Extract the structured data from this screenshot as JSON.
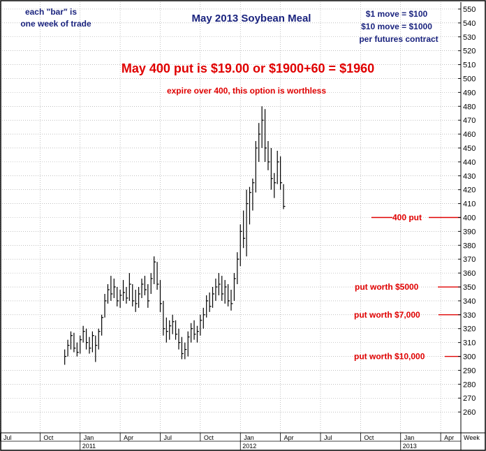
{
  "chart_data": {
    "type": "ohlc",
    "title": "May 2013 Soybean Meal",
    "notes": {
      "bar_note_line1": "each \"bar\" is",
      "bar_note_line2": "one week of trade",
      "move_line1": "$1 move = $100",
      "move_line2": "$10 move = $1000",
      "move_line3": "per futures contract",
      "headline": "May 400 put is $19.00 or $1900+60 = $1960",
      "subline": "expire over 400, this option is worthless"
    },
    "levels": [
      {
        "label": "400 put",
        "value": 400
      },
      {
        "label": "put worth $5000",
        "value": 350
      },
      {
        "label": "put worth $7,000",
        "value": 330
      },
      {
        "label": "put worth $10,000",
        "value": 300
      }
    ],
    "y_axis": {
      "min": 245,
      "max": 555,
      "ticks": [
        550,
        540,
        530,
        520,
        510,
        500,
        490,
        480,
        470,
        460,
        450,
        440,
        430,
        420,
        410,
        400,
        390,
        380,
        370,
        360,
        350,
        340,
        330,
        320,
        310,
        300,
        290,
        280,
        270,
        260
      ]
    },
    "x_axis": {
      "unit_label": "Week",
      "months": [
        {
          "label": "Jul",
          "week": 0
        },
        {
          "label": "Oct",
          "week": 13
        },
        {
          "label": "Jan",
          "week": 26
        },
        {
          "label": "Apr",
          "week": 39
        },
        {
          "label": "Jul",
          "week": 52
        },
        {
          "label": "Oct",
          "week": 65
        },
        {
          "label": "Jan",
          "week": 78
        },
        {
          "label": "Apr",
          "week": 91
        },
        {
          "label": "Jul",
          "week": 104
        },
        {
          "label": "Oct",
          "week": 117
        },
        {
          "label": "Jan",
          "week": 130
        },
        {
          "label": "Apr",
          "week": 143
        }
      ],
      "years": [
        {
          "label": "2011",
          "week": 26
        },
        {
          "label": "2012",
          "week": 78
        },
        {
          "label": "2013",
          "week": 130
        }
      ]
    },
    "bars": [
      {
        "week": 21,
        "high": 305,
        "low": 294,
        "close": 300
      },
      {
        "week": 22,
        "high": 312,
        "low": 300,
        "close": 308
      },
      {
        "week": 23,
        "high": 318,
        "low": 305,
        "close": 315
      },
      {
        "week": 24,
        "high": 317,
        "low": 303,
        "close": 306
      },
      {
        "week": 25,
        "high": 310,
        "low": 300,
        "close": 303
      },
      {
        "week": 26,
        "high": 315,
        "low": 302,
        "close": 312
      },
      {
        "week": 27,
        "high": 322,
        "low": 310,
        "close": 318
      },
      {
        "week": 28,
        "high": 320,
        "low": 305,
        "close": 310
      },
      {
        "week": 29,
        "high": 314,
        "low": 302,
        "close": 306
      },
      {
        "week": 30,
        "high": 318,
        "low": 303,
        "close": 315
      },
      {
        "week": 31,
        "high": 315,
        "low": 296,
        "close": 308
      },
      {
        "week": 32,
        "high": 320,
        "low": 305,
        "close": 318
      },
      {
        "week": 33,
        "high": 330,
        "low": 315,
        "close": 328
      },
      {
        "week": 34,
        "high": 345,
        "low": 328,
        "close": 340
      },
      {
        "week": 35,
        "high": 352,
        "low": 338,
        "close": 348
      },
      {
        "week": 36,
        "high": 358,
        "low": 340,
        "close": 345
      },
      {
        "week": 37,
        "high": 356,
        "low": 342,
        "close": 350
      },
      {
        "week": 38,
        "high": 350,
        "low": 336,
        "close": 340
      },
      {
        "week": 39,
        "high": 348,
        "low": 335,
        "close": 344
      },
      {
        "week": 40,
        "high": 355,
        "low": 340,
        "close": 346
      },
      {
        "week": 41,
        "high": 350,
        "low": 338,
        "close": 342
      },
      {
        "week": 42,
        "high": 360,
        "low": 340,
        "close": 352
      },
      {
        "week": 43,
        "high": 352,
        "low": 336,
        "close": 340
      },
      {
        "week": 44,
        "high": 348,
        "low": 332,
        "close": 338
      },
      {
        "week": 45,
        "high": 350,
        "low": 335,
        "close": 345
      },
      {
        "week": 46,
        "high": 356,
        "low": 342,
        "close": 352
      },
      {
        "week": 47,
        "high": 358,
        "low": 344,
        "close": 348
      },
      {
        "week": 48,
        "high": 352,
        "low": 335,
        "close": 340
      },
      {
        "week": 49,
        "high": 360,
        "low": 345,
        "close": 356
      },
      {
        "week": 50,
        "high": 372,
        "low": 352,
        "close": 368
      },
      {
        "week": 51,
        "high": 368,
        "low": 348,
        "close": 352
      },
      {
        "week": 52,
        "high": 355,
        "low": 332,
        "close": 338
      },
      {
        "week": 53,
        "high": 340,
        "low": 315,
        "close": 320
      },
      {
        "week": 54,
        "high": 328,
        "low": 310,
        "close": 318
      },
      {
        "week": 55,
        "high": 326,
        "low": 312,
        "close": 322
      },
      {
        "week": 56,
        "high": 330,
        "low": 316,
        "close": 325
      },
      {
        "week": 57,
        "high": 326,
        "low": 312,
        "close": 316
      },
      {
        "week": 58,
        "high": 320,
        "low": 305,
        "close": 310
      },
      {
        "week": 59,
        "high": 314,
        "low": 298,
        "close": 302
      },
      {
        "week": 60,
        "high": 310,
        "low": 298,
        "close": 305
      },
      {
        "week": 61,
        "high": 318,
        "low": 300,
        "close": 314
      },
      {
        "week": 62,
        "high": 324,
        "low": 310,
        "close": 320
      },
      {
        "week": 63,
        "high": 326,
        "low": 312,
        "close": 316
      },
      {
        "week": 64,
        "high": 322,
        "low": 310,
        "close": 318
      },
      {
        "week": 65,
        "high": 330,
        "low": 315,
        "close": 326
      },
      {
        "week": 66,
        "high": 335,
        "low": 320,
        "close": 330
      },
      {
        "week": 67,
        "high": 344,
        "low": 328,
        "close": 340
      },
      {
        "week": 68,
        "high": 346,
        "low": 332,
        "close": 336
      },
      {
        "week": 69,
        "high": 350,
        "low": 335,
        "close": 345
      },
      {
        "week": 70,
        "high": 356,
        "low": 340,
        "close": 350
      },
      {
        "week": 71,
        "high": 360,
        "low": 344,
        "close": 352
      },
      {
        "week": 72,
        "high": 358,
        "low": 340,
        "close": 345
      },
      {
        "week": 73,
        "high": 355,
        "low": 338,
        "close": 350
      },
      {
        "week": 74,
        "high": 352,
        "low": 336,
        "close": 340
      },
      {
        "week": 75,
        "high": 348,
        "low": 333,
        "close": 338
      },
      {
        "week": 76,
        "high": 360,
        "low": 340,
        "close": 356
      },
      {
        "week": 77,
        "high": 375,
        "low": 352,
        "close": 370
      },
      {
        "week": 78,
        "high": 395,
        "low": 365,
        "close": 390
      },
      {
        "week": 79,
        "high": 405,
        "low": 378,
        "close": 385
      },
      {
        "week": 80,
        "high": 420,
        "low": 372,
        "close": 410
      },
      {
        "week": 81,
        "high": 422,
        "low": 395,
        "close": 418
      },
      {
        "week": 82,
        "high": 428,
        "low": 405,
        "close": 425
      },
      {
        "week": 83,
        "high": 455,
        "low": 418,
        "close": 450
      },
      {
        "week": 84,
        "high": 468,
        "low": 440,
        "close": 460
      },
      {
        "week": 85,
        "high": 480,
        "low": 450,
        "close": 470
      },
      {
        "week": 86,
        "high": 478,
        "low": 440,
        "close": 450
      },
      {
        "week": 87,
        "high": 455,
        "low": 434,
        "close": 440
      },
      {
        "week": 88,
        "high": 450,
        "low": 420,
        "close": 428
      },
      {
        "week": 89,
        "high": 432,
        "low": 414,
        "close": 425
      },
      {
        "week": 90,
        "high": 448,
        "low": 424,
        "close": 440
      },
      {
        "week": 91,
        "high": 444,
        "low": 420,
        "close": 425
      },
      {
        "week": 92,
        "high": 424,
        "low": 406,
        "close": 408
      }
    ]
  }
}
